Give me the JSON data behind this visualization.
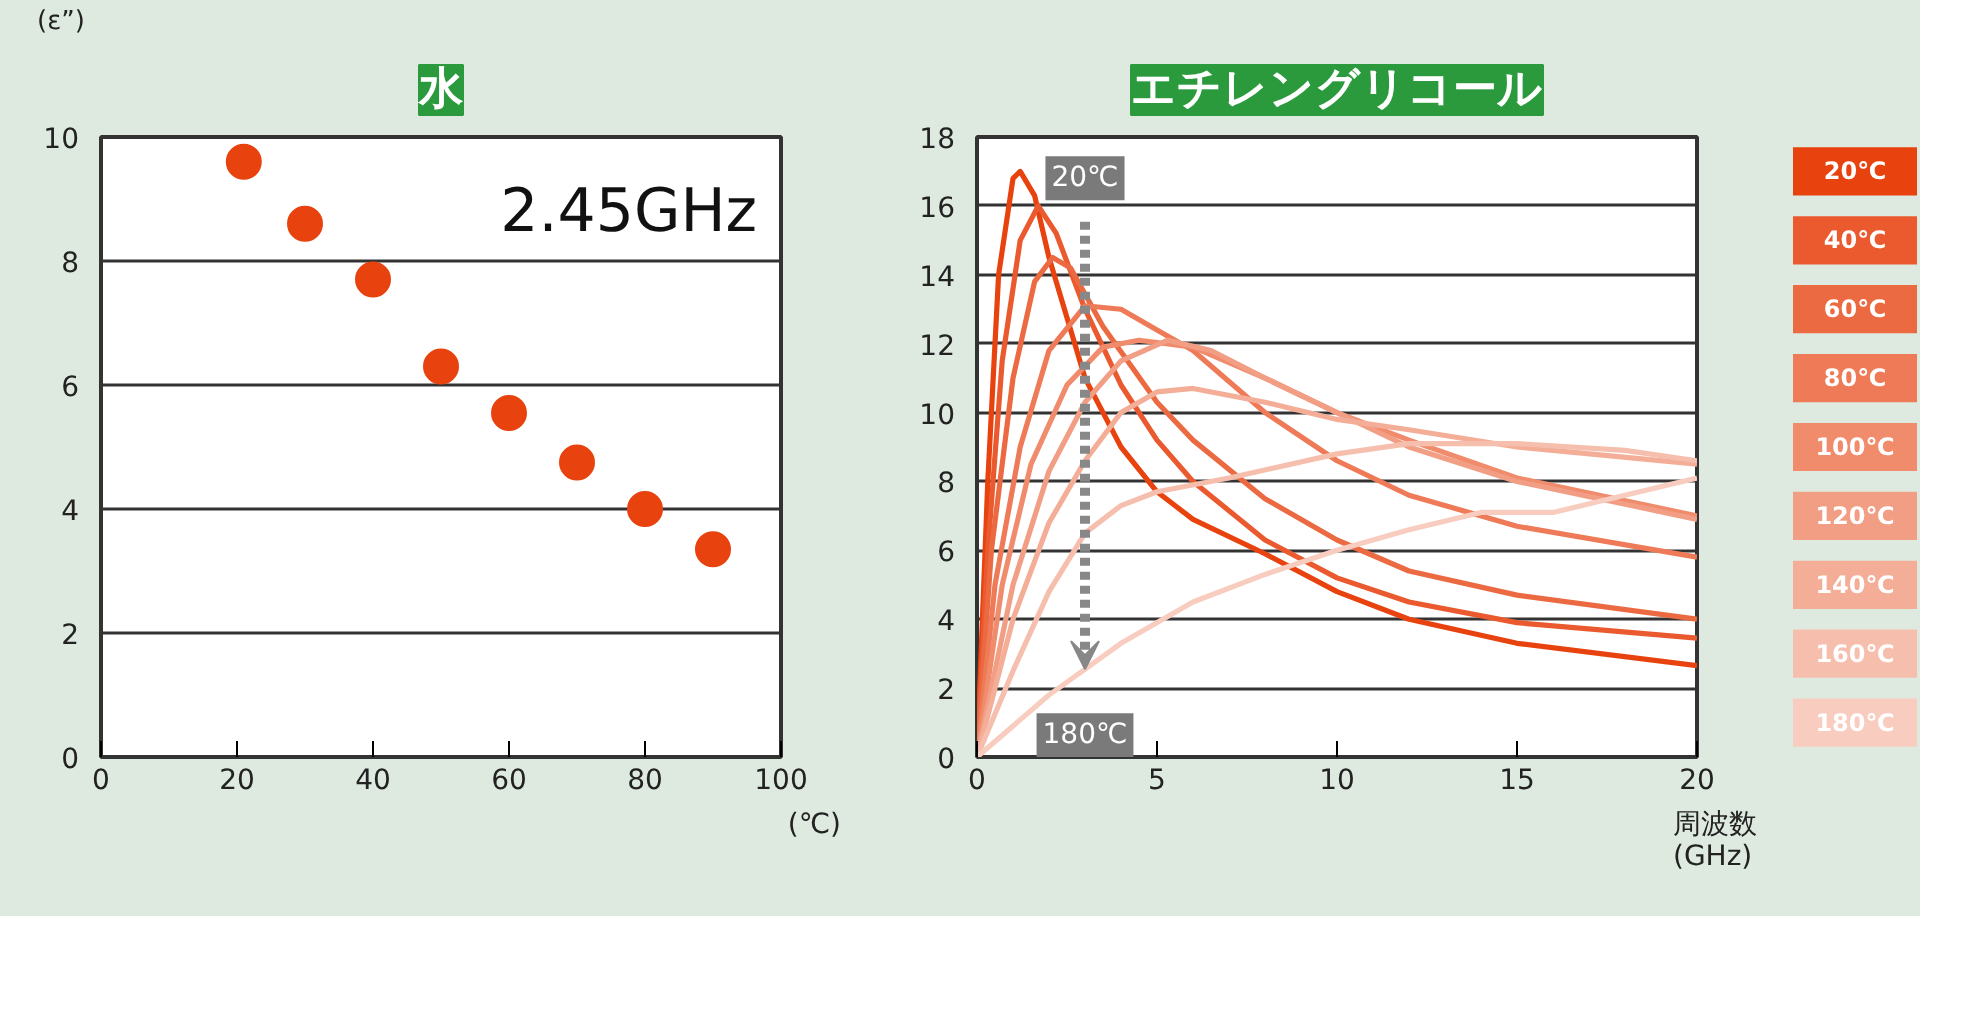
{
  "chart_data": [
    {
      "type": "scatter",
      "title": "水",
      "ylabel": "(ε”)",
      "xlabel": "(℃)",
      "annotations": [
        "2.45GHz"
      ],
      "x": [
        21,
        30,
        40,
        50,
        60,
        70,
        80,
        90
      ],
      "series": [
        {
          "color": "#e8420e",
          "values": [
            9.6,
            8.6,
            7.7,
            6.3,
            5.55,
            4.75,
            4.0,
            3.35
          ]
        }
      ],
      "xlim": [
        0,
        100
      ],
      "xticks": [
        0,
        20,
        40,
        60,
        80,
        100
      ],
      "ylim": [
        0,
        10
      ],
      "yticks": [
        0,
        2,
        4,
        6,
        8,
        10
      ],
      "grid": "y",
      "marker": "circle"
    },
    {
      "type": "line",
      "title": "エチレングリコール",
      "xlabel": "周波数\n(GHz)",
      "annotations": [
        {
          "text": "20℃",
          "x": 3,
          "y": 16.8
        },
        {
          "text": "180℃",
          "x": 3,
          "y": 2.55
        }
      ],
      "series": [
        {
          "name": "20℃",
          "color": "#e8420e",
          "x": [
            0,
            0.3,
            0.6,
            1.0,
            1.2,
            1.6,
            2,
            3,
            4,
            5,
            6,
            8,
            10,
            12,
            15,
            20
          ],
          "values": [
            0,
            8,
            14,
            16.8,
            17.0,
            16.3,
            14.5,
            11,
            9,
            7.7,
            6.9,
            5.9,
            4.8,
            4.0,
            3.3,
            2.65
          ]
        },
        {
          "name": "40℃",
          "color": "#eb5a2f",
          "x": [
            0,
            0.3,
            0.7,
            1.2,
            1.7,
            2.2,
            3,
            4,
            5,
            6,
            8,
            10,
            12,
            15,
            20
          ],
          "values": [
            0,
            6,
            11.5,
            15,
            16,
            15.2,
            13,
            10.8,
            9.2,
            8,
            6.3,
            5.2,
            4.5,
            3.9,
            3.45
          ]
        },
        {
          "name": "60℃",
          "color": "#ec6a42",
          "x": [
            0,
            0.4,
            1,
            1.6,
            2.1,
            2.6,
            3.5,
            5,
            6,
            8,
            10,
            12,
            15,
            20
          ],
          "values": [
            0,
            6,
            11,
            13.8,
            14.5,
            14.2,
            12.5,
            10.3,
            9.2,
            7.5,
            6.3,
            5.4,
            4.7,
            4.0
          ]
        },
        {
          "name": "80℃",
          "color": "#ee7a57",
          "x": [
            0,
            0.5,
            1.2,
            2,
            3,
            4,
            5,
            6,
            8,
            10,
            12,
            15,
            20
          ],
          "values": [
            0,
            5,
            9,
            11.8,
            13.1,
            13,
            12.4,
            11.8,
            10,
            8.6,
            7.6,
            6.7,
            5.8
          ]
        },
        {
          "name": "100℃",
          "color": "#f08c6c",
          "x": [
            0,
            0.7,
            1.5,
            2.5,
            3.5,
            4.5,
            6,
            8,
            10,
            12,
            15,
            20
          ],
          "values": [
            0,
            5,
            8.5,
            10.8,
            11.9,
            12.1,
            11.9,
            11,
            10,
            9.2,
            8.1,
            7.0
          ]
        },
        {
          "name": "120℃",
          "color": "#f29e85",
          "x": [
            0,
            1,
            2,
            3,
            4,
            5.3,
            6.5,
            8,
            10,
            12,
            15,
            20
          ],
          "values": [
            0,
            5,
            8.3,
            10.3,
            11.5,
            12.1,
            11.8,
            11,
            10,
            9,
            8,
            6.9
          ]
        },
        {
          "name": "140℃",
          "color": "#f4ae98",
          "x": [
            0,
            1,
            2,
            3,
            4,
            5,
            6,
            8,
            10,
            12,
            15,
            20
          ],
          "values": [
            0,
            4,
            6.8,
            8.6,
            10,
            10.6,
            10.7,
            10.3,
            9.8,
            9.5,
            9,
            8.5
          ]
        },
        {
          "name": "160℃",
          "color": "#f6bfad",
          "x": [
            0,
            1,
            2,
            3,
            4,
            5,
            7,
            10,
            12,
            15,
            18,
            20
          ],
          "values": [
            0,
            2.5,
            4.8,
            6.5,
            7.3,
            7.7,
            8.1,
            8.8,
            9.1,
            9.1,
            8.9,
            8.6
          ]
        },
        {
          "name": "180℃",
          "color": "#f8cdbf",
          "x": [
            0,
            2,
            4,
            6,
            8,
            10,
            12,
            14,
            16,
            18,
            20
          ],
          "values": [
            0,
            1.8,
            3.3,
            4.5,
            5.3,
            6,
            6.6,
            7.1,
            7.1,
            7.6,
            8.1
          ]
        }
      ],
      "xlim": [
        0,
        20
      ],
      "xticks": [
        0,
        5,
        10,
        15,
        20
      ],
      "ylim": [
        0,
        18
      ],
      "yticks": [
        0,
        2,
        4,
        6,
        8,
        10,
        12,
        14,
        16,
        18
      ],
      "grid": "y",
      "marker": "none",
      "line_style": "solid",
      "legend": "right"
    }
  ]
}
